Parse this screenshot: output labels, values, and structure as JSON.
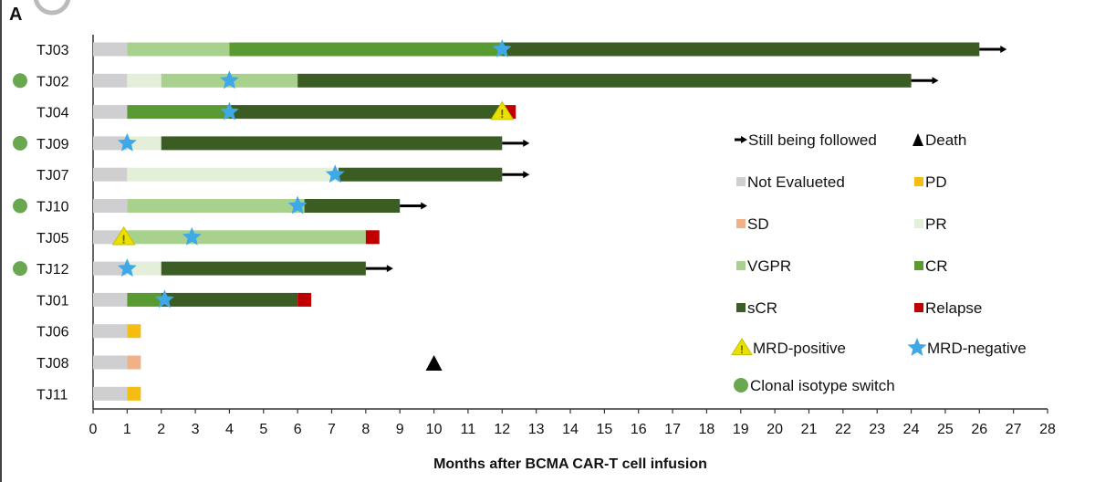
{
  "panel_label": "A",
  "chart_data": {
    "type": "swimmer",
    "xlabel": "Months after BCMA CAR-T cell infusion",
    "xlim": [
      0,
      28
    ],
    "xticks": [
      0,
      1,
      2,
      3,
      4,
      5,
      6,
      7,
      8,
      9,
      10,
      11,
      12,
      13,
      14,
      15,
      16,
      17,
      18,
      19,
      20,
      21,
      22,
      23,
      24,
      25,
      26,
      27,
      28
    ],
    "colors": {
      "NE": "#cfcfd1",
      "PD": "#f5bd10",
      "SD": "#f0b088",
      "PR": "#e3efd9",
      "VGPR": "#a9d18e",
      "CR": "#5a9a32",
      "sCR": "#3b5c22",
      "Relapse": "#c00000",
      "star": "#3fa9e8",
      "mrdpos": "#e8e000",
      "clonal": "#6aa84f"
    },
    "patients": [
      {
        "id": "TJ03",
        "clonal": false,
        "segments": [
          [
            "NE",
            0,
            1
          ],
          [
            "VGPR",
            1,
            4
          ],
          [
            "CR",
            4,
            12
          ],
          [
            "sCR",
            12,
            26
          ]
        ],
        "followed": true,
        "mrd_neg": [
          12
        ],
        "mrd_pos": []
      },
      {
        "id": "TJ02",
        "clonal": true,
        "segments": [
          [
            "NE",
            0,
            1
          ],
          [
            "PR",
            1,
            2
          ],
          [
            "VGPR",
            2,
            6
          ],
          [
            "sCR",
            6,
            24
          ]
        ],
        "followed": true,
        "mrd_neg": [
          4
        ],
        "mrd_pos": []
      },
      {
        "id": "TJ04",
        "clonal": false,
        "segments": [
          [
            "NE",
            0,
            1
          ],
          [
            "CR",
            1,
            4
          ],
          [
            "sCR",
            4,
            12
          ],
          [
            "Relapse",
            12,
            12.4
          ]
        ],
        "followed": false,
        "mrd_neg": [
          4
        ],
        "mrd_pos": [
          12
        ]
      },
      {
        "id": "TJ09",
        "clonal": true,
        "segments": [
          [
            "NE",
            0,
            1
          ],
          [
            "PR",
            1,
            2
          ],
          [
            "sCR",
            2,
            12
          ]
        ],
        "followed": true,
        "mrd_neg": [
          1
        ],
        "mrd_pos": []
      },
      {
        "id": "TJ07",
        "clonal": false,
        "segments": [
          [
            "NE",
            0,
            1
          ],
          [
            "PR",
            1,
            7.2
          ],
          [
            "sCR",
            7.2,
            12
          ]
        ],
        "followed": true,
        "mrd_neg": [
          7.1
        ],
        "mrd_pos": []
      },
      {
        "id": "TJ10",
        "clonal": true,
        "segments": [
          [
            "NE",
            0,
            1
          ],
          [
            "VGPR",
            1,
            6.2
          ],
          [
            "sCR",
            6.2,
            9
          ]
        ],
        "followed": true,
        "mrd_neg": [
          6
        ],
        "mrd_pos": []
      },
      {
        "id": "TJ05",
        "clonal": false,
        "segments": [
          [
            "NE",
            0,
            1
          ],
          [
            "VGPR",
            1,
            8
          ],
          [
            "Relapse",
            8,
            8.4
          ]
        ],
        "followed": false,
        "mrd_neg": [
          2.9
        ],
        "mrd_pos": [
          0.9
        ]
      },
      {
        "id": "TJ12",
        "clonal": true,
        "segments": [
          [
            "NE",
            0,
            1
          ],
          [
            "PR",
            1,
            2
          ],
          [
            "sCR",
            2,
            8
          ]
        ],
        "followed": true,
        "mrd_neg": [
          1
        ],
        "mrd_pos": []
      },
      {
        "id": "TJ01",
        "clonal": false,
        "segments": [
          [
            "NE",
            0,
            1
          ],
          [
            "CR",
            1,
            2
          ],
          [
            "sCR",
            2,
            6
          ],
          [
            "Relapse",
            6,
            6.4
          ]
        ],
        "followed": false,
        "mrd_neg": [
          2.1
        ],
        "mrd_pos": []
      },
      {
        "id": "TJ06",
        "clonal": false,
        "segments": [
          [
            "NE",
            0,
            1
          ],
          [
            "PD",
            1,
            1.4
          ]
        ],
        "followed": false,
        "mrd_neg": [],
        "mrd_pos": []
      },
      {
        "id": "TJ08",
        "clonal": false,
        "segments": [
          [
            "NE",
            0,
            1
          ],
          [
            "SD",
            1,
            1.4
          ]
        ],
        "followed": false,
        "mrd_neg": [],
        "mrd_pos": [],
        "death": 10
      },
      {
        "id": "TJ11",
        "clonal": false,
        "segments": [
          [
            "NE",
            0,
            1
          ],
          [
            "PD",
            1,
            1.4
          ]
        ],
        "followed": false,
        "mrd_neg": [],
        "mrd_pos": []
      }
    ],
    "legend": [
      {
        "key": "arrow",
        "label": "Still being followed"
      },
      {
        "key": "death",
        "label": "Death"
      },
      {
        "key": "NE",
        "label": "Not Evalueted"
      },
      {
        "key": "PD",
        "label": "PD"
      },
      {
        "key": "SD",
        "label": "SD"
      },
      {
        "key": "PR",
        "label": "PR"
      },
      {
        "key": "VGPR",
        "label": "VGPR"
      },
      {
        "key": "CR",
        "label": "CR"
      },
      {
        "key": "sCR",
        "label": "sCR"
      },
      {
        "key": "Relapse",
        "label": "Relapse"
      },
      {
        "key": "mrdpos",
        "label": "MRD-positive"
      },
      {
        "key": "star",
        "label": "MRD-negative"
      },
      {
        "key": "clonal",
        "label": "Clonal isotype switch"
      }
    ]
  }
}
